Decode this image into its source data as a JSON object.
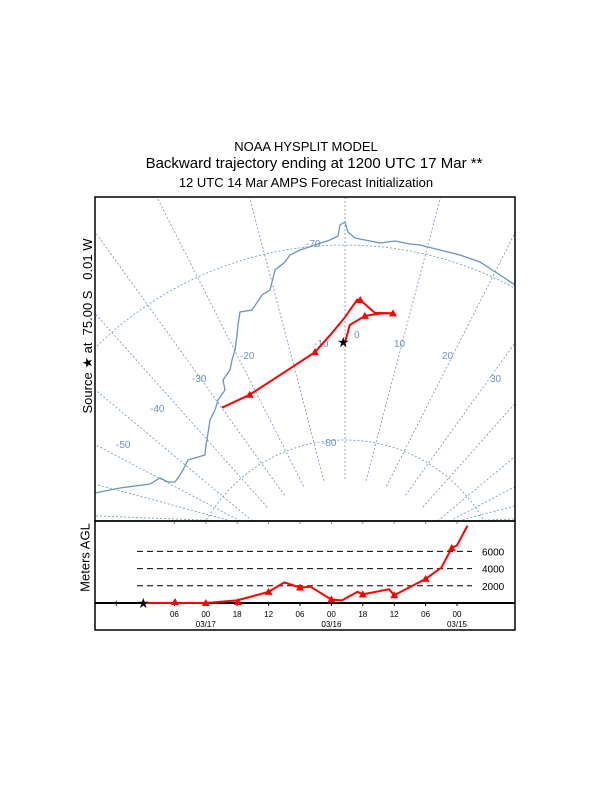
{
  "header": {
    "model": "NOAA HYSPLIT MODEL",
    "title": "Backward trajectory ending at 1200 UTC 17 Mar **",
    "subtitle": "12 UTC 14 Mar    AMPS  Forecast Initialization"
  },
  "source_label": "Source ★ at  75.00 S   0.01 W",
  "colors": {
    "trajectory": "#ff0000",
    "map_lines": "#6a93c0",
    "frame": "#000000"
  },
  "map": {
    "projection": "polar stereographic",
    "source": {
      "lat": -75.0,
      "lon": -0.01
    },
    "latitude_labels": [
      "-70",
      "-80"
    ],
    "longitude_labels": [
      "-50",
      "-40",
      "-30",
      "-20",
      "-10",
      "0",
      "10",
      "20",
      "30"
    ],
    "trajectory": [
      {
        "lat": -75.0,
        "lon": 0.0
      },
      {
        "lat": -74.1,
        "lon": 1.0
      },
      {
        "lat": -73.6,
        "lon": 4.0
      },
      {
        "lat": -73.4,
        "lon": 7.0
      },
      {
        "lat": -73.3,
        "lon": 9.5
      },
      {
        "lat": -73.4,
        "lon": 5.9
      },
      {
        "lat": -72.8,
        "lon": 2.9
      },
      {
        "lat": -72.8,
        "lon": 2.3
      },
      {
        "lat": -73.7,
        "lon": 0.0
      },
      {
        "lat": -74.6,
        "lon": -3.2
      },
      {
        "lat": -75.4,
        "lon": -6.9
      },
      {
        "lat": -76.0,
        "lon": -13.3
      },
      {
        "lat": -76.6,
        "lon": -24.9
      },
      {
        "lat": -76.5,
        "lon": -32.6
      }
    ]
  },
  "chart_data": {
    "type": "line",
    "ylabel": "Meters AGL",
    "y_ticks": [
      "2000",
      "4000",
      "6000"
    ],
    "x_ticks": [
      {
        "hour": "06",
        "date": ""
      },
      {
        "hour": "00",
        "date": "03/17"
      },
      {
        "hour": "18",
        "date": ""
      },
      {
        "hour": "12",
        "date": ""
      },
      {
        "hour": "06",
        "date": ""
      },
      {
        "hour": "00",
        "date": "03/16"
      },
      {
        "hour": "18",
        "date": ""
      },
      {
        "hour": "12",
        "date": ""
      },
      {
        "hour": "06",
        "date": ""
      },
      {
        "hour": "00",
        "date": "03/15"
      }
    ],
    "series": [
      {
        "points": [
          {
            "time": "03/17 12",
            "height": 0
          },
          {
            "time": "03/17 00",
            "height": 0
          },
          {
            "time": "03/16 18",
            "height": 300
          },
          {
            "time": "03/16 12",
            "height": 1300
          },
          {
            "time": "03/16 09",
            "height": 2400
          },
          {
            "time": "03/16 06",
            "height": 1800
          },
          {
            "time": "03/16 04",
            "height": 1900
          },
          {
            "time": "03/16 00",
            "height": 400
          },
          {
            "time": "03/15 22",
            "height": 300
          },
          {
            "time": "03/15 19",
            "height": 1300
          },
          {
            "time": "03/15 18",
            "height": 1000
          },
          {
            "time": "03/15 13",
            "height": 1600
          },
          {
            "time": "03/15 12",
            "height": 900
          },
          {
            "time": "03/15 06",
            "height": 2800
          },
          {
            "time": "03/15 03",
            "height": 4100
          },
          {
            "time": "03/15 01",
            "height": 6400
          },
          {
            "time": "03/15 00",
            "height": 6700
          },
          {
            "time": "03/14 22",
            "height": 9000
          }
        ]
      }
    ]
  }
}
